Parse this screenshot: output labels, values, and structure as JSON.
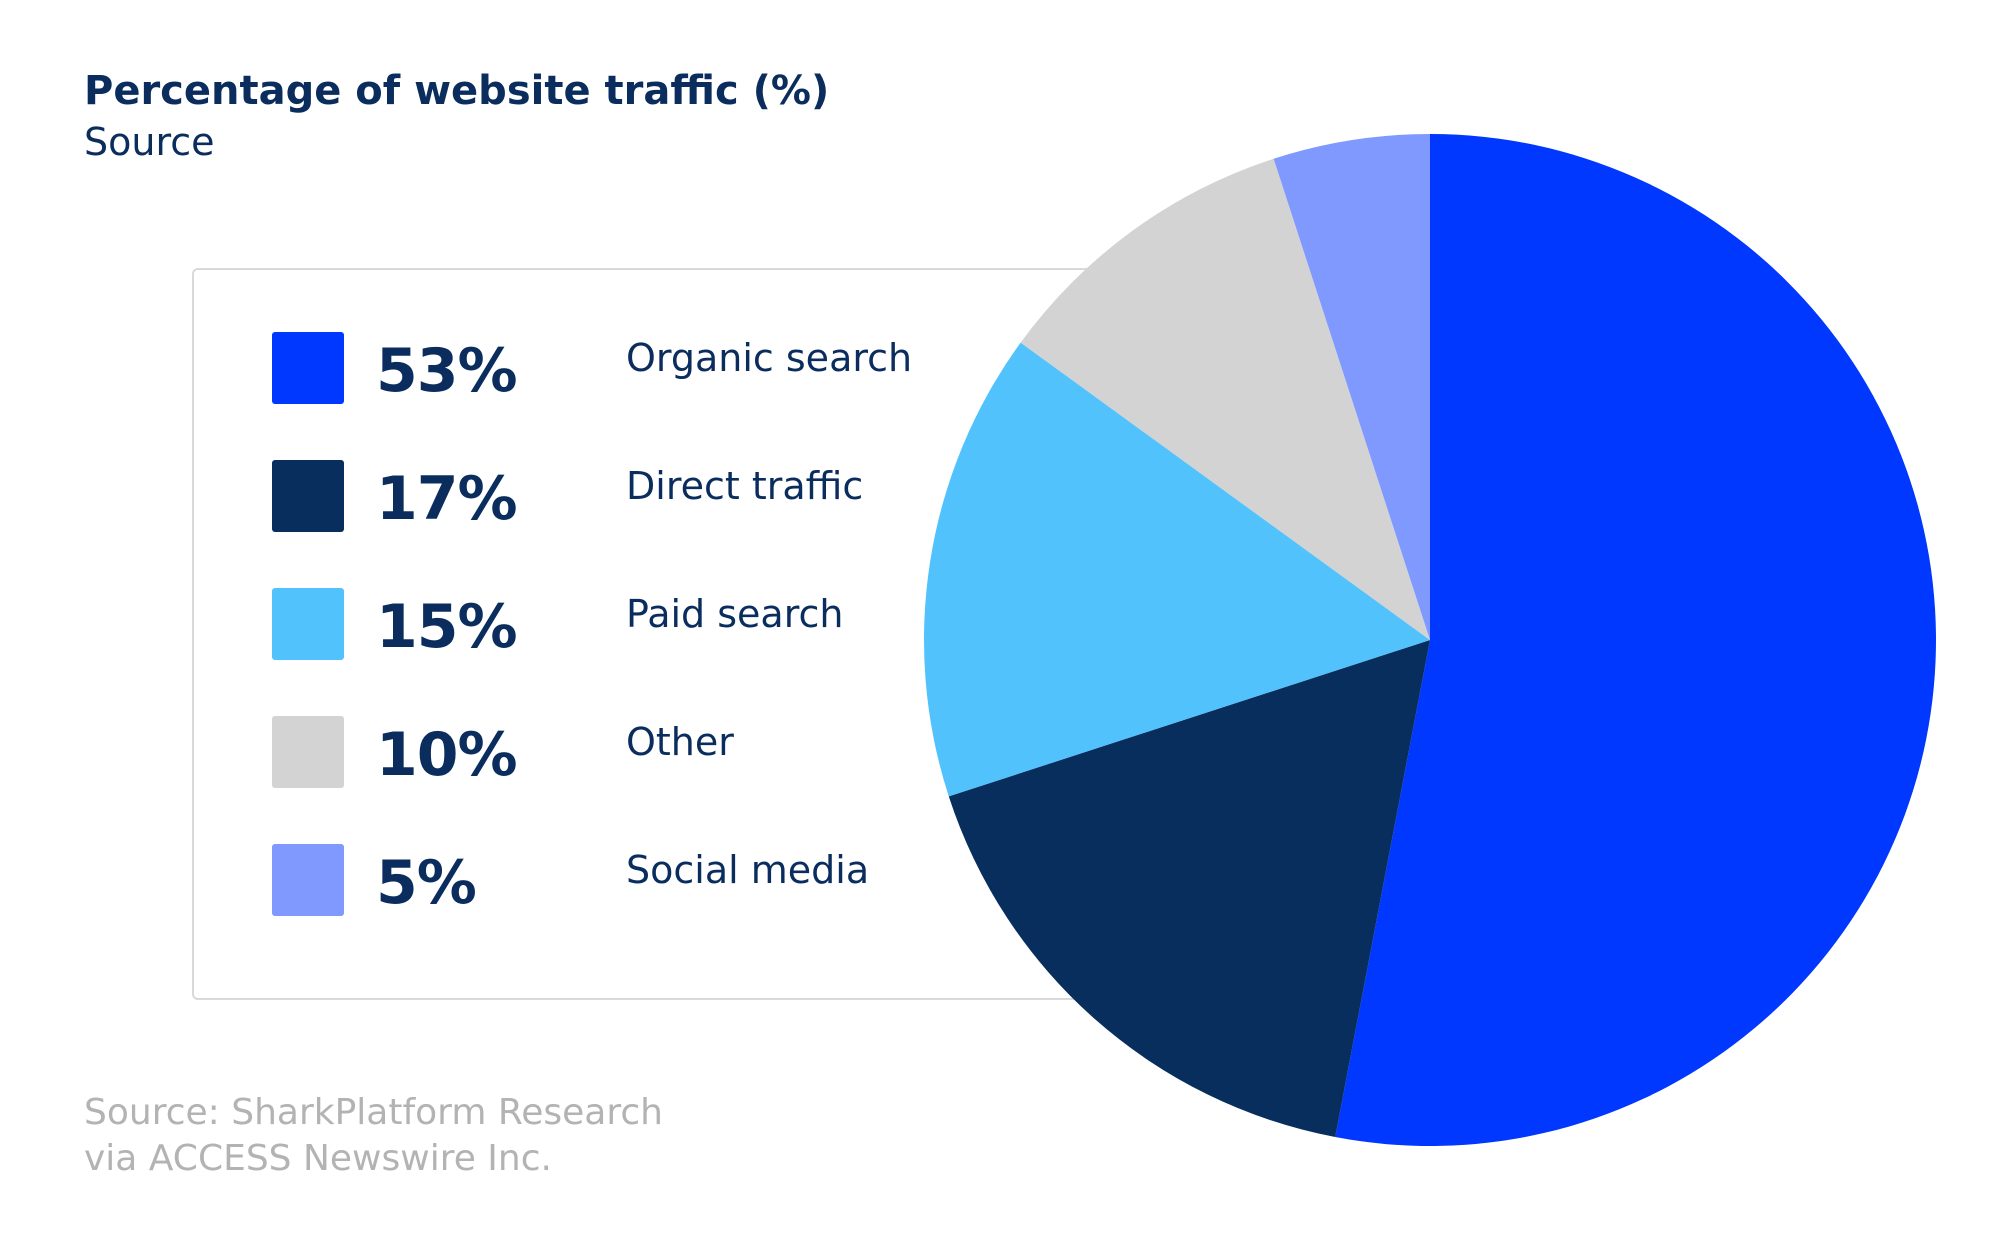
{
  "header": {
    "title": "Percentage of website traffic (%)",
    "subtitle": "Source"
  },
  "legend": {
    "items": [
      {
        "value": "53%",
        "label": "Organic search",
        "color": "#0038ff"
      },
      {
        "value": "17%",
        "label": "Direct traffic",
        "color": "#072e5c"
      },
      {
        "value": "15%",
        "label": "Paid search",
        "color": "#52c2fd"
      },
      {
        "value": "10%",
        "label": "Other",
        "color": "#d3d3d3"
      },
      {
        "value": "5%",
        "label": "Social media",
        "color": "#7f99ff"
      }
    ]
  },
  "footer": {
    "source_line1": "Source: SharkPlatform Research",
    "source_line2": "via ACCESS Newswire Inc."
  },
  "chart_data": {
    "type": "pie",
    "title": "Percentage of website traffic (%)",
    "subtitle": "Source",
    "categories": [
      "Organic search",
      "Direct traffic",
      "Paid search",
      "Other",
      "Social media"
    ],
    "values": [
      53,
      17,
      15,
      10,
      5
    ],
    "colors": [
      "#0038ff",
      "#072e5c",
      "#52c2fd",
      "#d3d3d3",
      "#7f99ff"
    ],
    "legend_position": "left"
  }
}
